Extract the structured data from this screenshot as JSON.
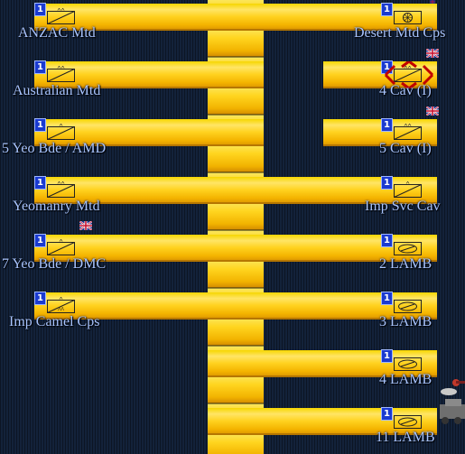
{
  "units": {
    "left": [
      {
        "badge": "1",
        "echelon": "XX",
        "label": "ANZAC Mtd"
      },
      {
        "badge": "1",
        "echelon": "XX",
        "label": "Australian Mtd"
      },
      {
        "badge": "1",
        "echelon": "X",
        "label": "5 Yeo Bde / AMD"
      },
      {
        "badge": "1",
        "echelon": "XX",
        "label": "Yeomanry Mtd"
      },
      {
        "badge": "1",
        "echelon": "X",
        "label": "7 Yeo Bde / DMC"
      },
      {
        "badge": "1",
        "echelon": "X",
        "label": "Imp Camel Cps"
      }
    ],
    "right": [
      {
        "badge": "1",
        "echelon": "",
        "label": "Desert Mtd Cps"
      },
      {
        "badge": "1",
        "echelon": "XX",
        "label": "4 Cav (I)"
      },
      {
        "badge": "1",
        "echelon": "XX",
        "label": "5 Cav (I)"
      },
      {
        "badge": "1",
        "echelon": "X",
        "label": "Imp Svc Cav"
      },
      {
        "badge": "1",
        "echelon": "",
        "label": "2 LAMB"
      },
      {
        "badge": "1",
        "echelon": "",
        "label": "3 LAMB"
      },
      {
        "badge": "1",
        "echelon": "",
        "label": "4 LAMB"
      },
      {
        "badge": "1",
        "echelon": "",
        "label": "11 LAMB"
      }
    ]
  },
  "icons": {
    "flag": "union-jack-flag-icon",
    "cavalry": "cavalry-unit-icon",
    "armored_car": "armored-car-unit-icon",
    "hq": "corps-hq-icon"
  },
  "colors": {
    "bar": "#ffd21f",
    "badge": "#1a3ad0",
    "label": "#a8c4ff",
    "selection": "#c00000"
  }
}
